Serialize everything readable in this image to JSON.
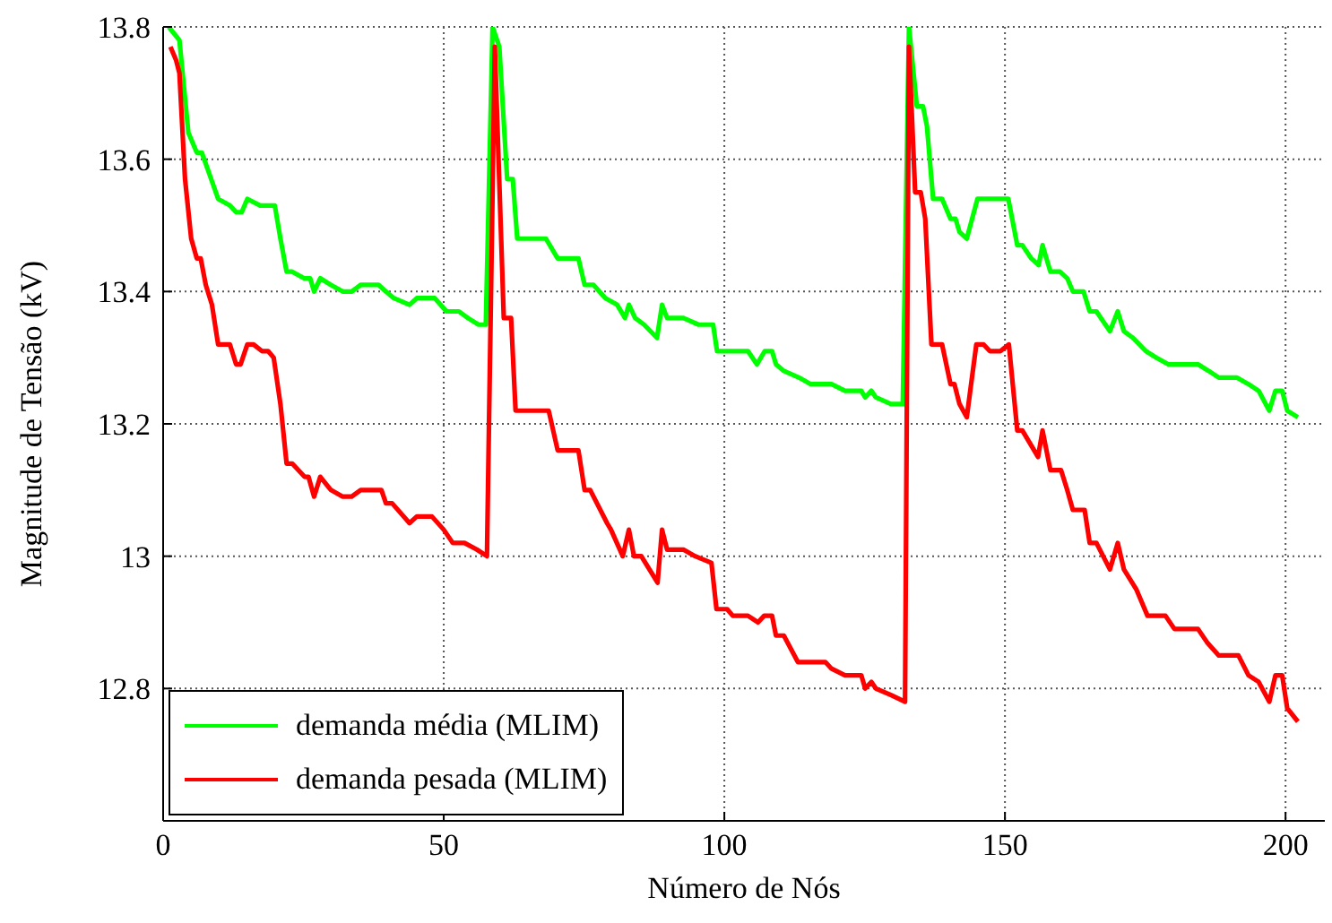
{
  "chart_data": {
    "type": "line",
    "xlabel": "Número de Nós",
    "ylabel": "Magnitude de Tensão (kV)",
    "xlim": [
      0,
      207
    ],
    "xticks": [
      0,
      50,
      100,
      150,
      200
    ],
    "ylim": [
      12.6,
      13.8
    ],
    "yticks": [
      12.8,
      13,
      13.2,
      13.4,
      13.6,
      13.8
    ],
    "grid": true,
    "legend": "bottom left",
    "line_style": "solid",
    "marker": "none",
    "series": [
      {
        "name": "demanda média (MLIM)",
        "color": "#00ff00",
        "x": [
          1,
          2.9,
          4.5,
          6,
          6.9,
          9.8,
          11.9,
          13,
          14,
          15,
          17.3,
          18.3,
          19.9,
          20.9,
          22,
          23,
          25.1,
          26.2,
          26.9,
          28,
          29.9,
          32,
          33.6,
          35.2,
          38.4,
          39.7,
          41.1,
          43.9,
          45.2,
          48.4,
          50.5,
          52.7,
          54.3,
          56.2,
          57.5,
          58.7,
          59.9,
          61.3,
          62.3,
          63.1,
          68.2,
          70.3,
          71.9,
          74,
          75.1,
          76.7,
          78.8,
          80.9,
          82.3,
          83,
          84.1,
          85.7,
          88,
          88.9,
          89.8,
          92.7,
          95.4,
          98,
          98.7,
          100,
          104.2,
          105.8,
          107.2,
          108.5,
          109.2,
          110.6,
          113.3,
          115.4,
          118,
          119.1,
          121.5,
          124.4,
          125.1,
          126.2,
          127,
          129.7,
          131.8,
          132.9,
          134.3,
          135.4,
          136.1,
          137.2,
          138.8,
          140.3,
          141.2,
          141.9,
          143.2,
          145.1,
          150.6,
          152.2,
          153.1,
          154.7,
          156,
          156.7,
          158.1,
          159.8,
          161.1,
          162.1,
          164,
          165.1,
          166.3,
          168.7,
          170.1,
          171.2,
          172.8,
          175.1,
          177,
          179.1,
          180.4,
          184.4,
          186.3,
          188.1,
          191.3,
          193.4,
          195.2,
          197.1,
          198.2,
          199.4,
          200.3,
          202.2
        ],
        "values": [
          13.8,
          13.78,
          13.64,
          13.61,
          13.61,
          13.54,
          13.53,
          13.52,
          13.52,
          13.54,
          13.53,
          13.53,
          13.53,
          13.48,
          13.43,
          13.43,
          13.42,
          13.42,
          13.4,
          13.42,
          13.41,
          13.4,
          13.4,
          13.41,
          13.41,
          13.4,
          13.39,
          13.38,
          13.39,
          13.39,
          13.37,
          13.37,
          13.36,
          13.35,
          13.35,
          13.8,
          13.77,
          13.57,
          13.57,
          13.48,
          13.48,
          13.45,
          13.45,
          13.45,
          13.41,
          13.41,
          13.39,
          13.38,
          13.36,
          13.38,
          13.36,
          13.35,
          13.33,
          13.38,
          13.36,
          13.36,
          13.35,
          13.35,
          13.31,
          13.31,
          13.31,
          13.29,
          13.31,
          13.31,
          13.29,
          13.28,
          13.27,
          13.26,
          13.26,
          13.26,
          13.25,
          13.25,
          13.24,
          13.25,
          13.24,
          13.23,
          13.23,
          13.8,
          13.68,
          13.68,
          13.65,
          13.54,
          13.54,
          13.51,
          13.51,
          13.49,
          13.48,
          13.54,
          13.54,
          13.47,
          13.47,
          13.45,
          13.44,
          13.47,
          13.43,
          13.43,
          13.42,
          13.4,
          13.4,
          13.37,
          13.37,
          13.34,
          13.37,
          13.34,
          13.33,
          13.31,
          13.3,
          13.29,
          13.29,
          13.29,
          13.28,
          13.27,
          13.27,
          13.26,
          13.25,
          13.22,
          13.25,
          13.25,
          13.22,
          13.21
        ]
      },
      {
        "name": "demanda pesada (MLIM)",
        "color": "#ff0000",
        "x": [
          1.3,
          2.3,
          2.9,
          3.9,
          5,
          6,
          6.7,
          7.6,
          8.7,
          9.8,
          11.3,
          11.9,
          13,
          13.8,
          15,
          16.1,
          17.6,
          18.7,
          19.7,
          20.9,
          22,
          23,
          25.2,
          25.9,
          26.9,
          28,
          29.9,
          32,
          33.6,
          35.2,
          38.9,
          39.7,
          40.8,
          43.9,
          45.2,
          47.9,
          50,
          51.6,
          53.7,
          55.9,
          57.7,
          59.1,
          60.7,
          62,
          62.8,
          68.7,
          70.3,
          71.3,
          74,
          75.1,
          76.1,
          79.1,
          79.8,
          81.9,
          83,
          83.9,
          85.2,
          88.1,
          88.9,
          89.8,
          92.7,
          94.8,
          97.7,
          98.6,
          100.5,
          101.5,
          104.2,
          106,
          107.1,
          108.5,
          109.2,
          110.6,
          113.1,
          115.4,
          118,
          119.1,
          121.5,
          124.4,
          125.1,
          126.2,
          127,
          129.7,
          132.2,
          132.9,
          134,
          135,
          135.8,
          136.9,
          138.8,
          140.3,
          141,
          141.9,
          143.2,
          144.9,
          146.2,
          147.3,
          149.2,
          150.7,
          152.2,
          153.1,
          155.9,
          156.7,
          158.1,
          160,
          161.1,
          162.1,
          164.2,
          165.1,
          166.3,
          168.7,
          170.1,
          171.2,
          173.4,
          175.4,
          177,
          178.6,
          180.2,
          182.8,
          184.4,
          186,
          188.1,
          191.6,
          193.4,
          195.2,
          197.1,
          198.2,
          199.4,
          200.3,
          202.2
        ],
        "values": [
          13.77,
          13.75,
          13.73,
          13.57,
          13.48,
          13.45,
          13.45,
          13.41,
          13.38,
          13.32,
          13.32,
          13.32,
          13.29,
          13.29,
          13.32,
          13.32,
          13.31,
          13.31,
          13.3,
          13.23,
          13.14,
          13.14,
          13.12,
          13.12,
          13.09,
          13.12,
          13.1,
          13.09,
          13.09,
          13.1,
          13.1,
          13.08,
          13.08,
          13.05,
          13.06,
          13.06,
          13.04,
          13.02,
          13.02,
          13.01,
          13,
          13.77,
          13.36,
          13.36,
          13.22,
          13.22,
          13.16,
          13.16,
          13.16,
          13.1,
          13.1,
          13.05,
          13.04,
          13,
          13.04,
          13,
          13,
          12.96,
          13.04,
          13.01,
          13.01,
          13,
          12.99,
          12.92,
          12.92,
          12.91,
          12.91,
          12.9,
          12.91,
          12.91,
          12.88,
          12.88,
          12.84,
          12.84,
          12.84,
          12.83,
          12.82,
          12.82,
          12.8,
          12.81,
          12.8,
          12.79,
          12.78,
          13.77,
          13.55,
          13.55,
          13.51,
          13.32,
          13.32,
          13.26,
          13.26,
          13.23,
          13.21,
          13.32,
          13.32,
          13.31,
          13.31,
          13.32,
          13.19,
          13.19,
          13.15,
          13.19,
          13.13,
          13.13,
          13.1,
          13.07,
          13.07,
          13.02,
          13.02,
          12.98,
          13.02,
          12.98,
          12.95,
          12.91,
          12.91,
          12.91,
          12.89,
          12.89,
          12.89,
          12.87,
          12.85,
          12.85,
          12.82,
          12.81,
          12.78,
          12.82,
          12.82,
          12.77,
          12.75
        ]
      }
    ]
  }
}
